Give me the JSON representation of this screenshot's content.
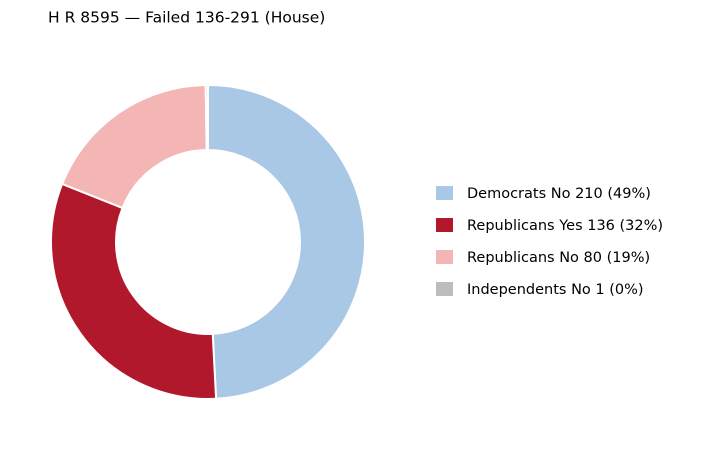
{
  "chart_data": {
    "type": "donut",
    "title": "H R 8595 — Failed 136-291 (House)",
    "categories": [
      "Democrats No   210  (49%)",
      "Republicans Yes   136  (32%)",
      "Republicans No   80  (19%)",
      "Independents No   1  (0%)"
    ],
    "values": [
      210,
      136,
      80,
      1
    ],
    "colors": [
      "#a8c8e6",
      "#b2182b",
      "#f4b6b4",
      "#bdbdbd"
    ],
    "legend": "right"
  }
}
